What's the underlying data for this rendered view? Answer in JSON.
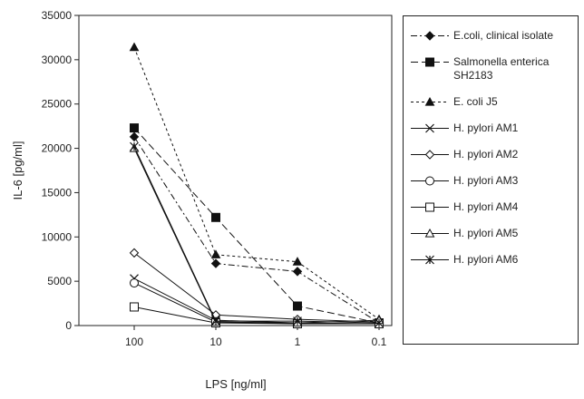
{
  "chart_data": {
    "type": "line",
    "x_label": "LPS [ng/ml]",
    "y_label": "IL-6 [pg/ml]",
    "categories": [
      "100",
      "10",
      "1",
      "0.1"
    ],
    "ylim": [
      0,
      35000
    ],
    "yticks": [
      0,
      5000,
      10000,
      15000,
      20000,
      25000,
      30000,
      35000
    ],
    "series": [
      {
        "name": "E.coli, clinical isolate",
        "color": "#111",
        "marker": "diamond-filled",
        "dash": "dashdot",
        "values": [
          21300,
          7000,
          6100,
          300
        ]
      },
      {
        "name": "Salmonella enterica SH2183",
        "color": "#111",
        "marker": "square-filled",
        "dash": "dashed",
        "values": [
          22300,
          12200,
          2200,
          300
        ]
      },
      {
        "name": "E. coli J5",
        "color": "#111",
        "marker": "triangle-filled",
        "dash": "dotted",
        "values": [
          31400,
          8000,
          7200,
          700
        ]
      },
      {
        "name": "H. pylori AM1",
        "color": "#111",
        "marker": "x",
        "dash": "solid",
        "values": [
          5300,
          600,
          300,
          200
        ]
      },
      {
        "name": "H. pylori AM2",
        "color": "#111",
        "marker": "diamond-open",
        "dash": "solid",
        "values": [
          8200,
          1200,
          700,
          400
        ]
      },
      {
        "name": "H. pylori AM3",
        "color": "#111",
        "marker": "circle-open",
        "dash": "solid",
        "values": [
          4800,
          400,
          200,
          200
        ]
      },
      {
        "name": "H. pylori AM4",
        "color": "#111",
        "marker": "square-open",
        "dash": "solid",
        "values": [
          2100,
          300,
          200,
          200
        ]
      },
      {
        "name": "H. pylori AM5",
        "color": "#111",
        "marker": "triangle-open",
        "dash": "solid",
        "values": [
          20000,
          400,
          300,
          600
        ]
      },
      {
        "name": "H. pylori AM6",
        "color": "#111",
        "marker": "asterisk",
        "dash": "solid",
        "values": [
          20200,
          500,
          500,
          300
        ]
      }
    ]
  }
}
